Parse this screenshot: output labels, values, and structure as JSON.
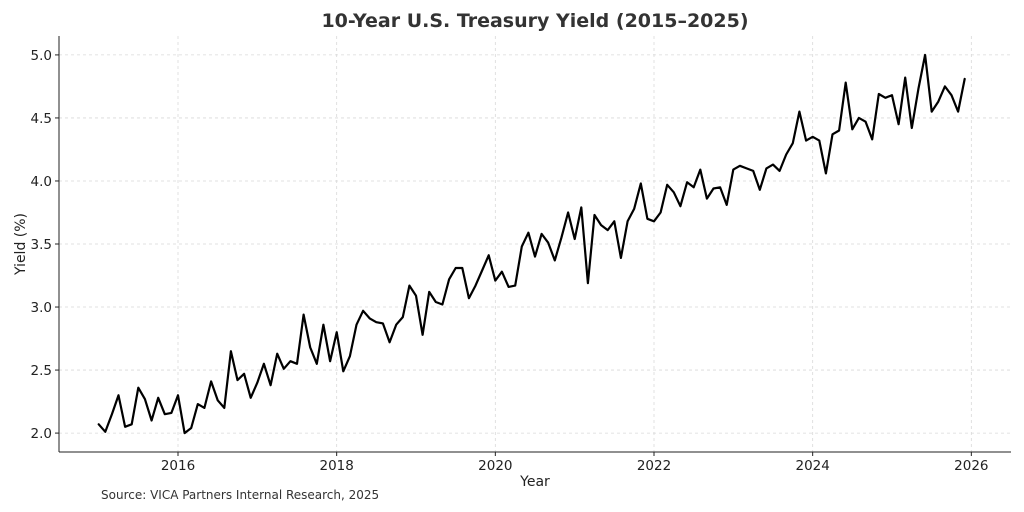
{
  "chart_data": {
    "type": "line",
    "title": "10-Year U.S. Treasury Yield (2015–2025)",
    "xlabel": "Year",
    "ylabel": "Yield (%)",
    "source": "Source: VICA Partners Internal Research, 2025",
    "xlim": [
      "2014-07-01",
      "2026-07-01"
    ],
    "ylim": [
      1.85,
      5.15
    ],
    "x_ticks": [
      "2016",
      "2018",
      "2020",
      "2022",
      "2024",
      "2026"
    ],
    "y_ticks": [
      "2.0",
      "2.5",
      "3.0",
      "3.5",
      "4.0",
      "4.5",
      "5.0"
    ],
    "grid": true,
    "line_color": "#000000",
    "series": [
      {
        "x": [
          "2015-01",
          "2015-02",
          "2015-03",
          "2015-04",
          "2015-05",
          "2015-06",
          "2015-07",
          "2015-08",
          "2015-09",
          "2015-10",
          "2015-11",
          "2015-12",
          "2016-01",
          "2016-02",
          "2016-03",
          "2016-04",
          "2016-05",
          "2016-06",
          "2016-07",
          "2016-08",
          "2016-09",
          "2016-10",
          "2016-11",
          "2016-12",
          "2017-01",
          "2017-02",
          "2017-03",
          "2017-04",
          "2017-05",
          "2017-06",
          "2017-07",
          "2017-08",
          "2017-09",
          "2017-10",
          "2017-11",
          "2017-12",
          "2018-01",
          "2018-02",
          "2018-03",
          "2018-04",
          "2018-05",
          "2018-06",
          "2018-07",
          "2018-08",
          "2018-09",
          "2018-10",
          "2018-11",
          "2018-12",
          "2019-01",
          "2019-02",
          "2019-03",
          "2019-04",
          "2019-05",
          "2019-06",
          "2019-07",
          "2019-08",
          "2019-09",
          "2019-10",
          "2019-11",
          "2019-12",
          "2020-01",
          "2020-02",
          "2020-03",
          "2020-04",
          "2020-05",
          "2020-06",
          "2020-07",
          "2020-08",
          "2020-09",
          "2020-10",
          "2020-11",
          "2020-12",
          "2021-01",
          "2021-02",
          "2021-03",
          "2021-04",
          "2021-05",
          "2021-06",
          "2021-07",
          "2021-08",
          "2021-09",
          "2021-10",
          "2021-11",
          "2021-12",
          "2022-01",
          "2022-02",
          "2022-03",
          "2022-04",
          "2022-05",
          "2022-06",
          "2022-07",
          "2022-08",
          "2022-09",
          "2022-10",
          "2022-11",
          "2022-12",
          "2023-01",
          "2023-02",
          "2023-03",
          "2023-04",
          "2023-05",
          "2023-06",
          "2023-07",
          "2023-08",
          "2023-09",
          "2023-10",
          "2023-11",
          "2023-12",
          "2024-01",
          "2024-02",
          "2024-03",
          "2024-04",
          "2024-05",
          "2024-06",
          "2024-07",
          "2024-08",
          "2024-09",
          "2024-10",
          "2024-11",
          "2024-12",
          "2025-01",
          "2025-02",
          "2025-03",
          "2025-04",
          "2025-05",
          "2025-06",
          "2025-07",
          "2025-08",
          "2025-09",
          "2025-10",
          "2025-11",
          "2025-12"
        ],
        "values": [
          2.07,
          2.01,
          2.15,
          2.3,
          2.05,
          2.07,
          2.36,
          2.27,
          2.1,
          2.28,
          2.15,
          2.16,
          2.3,
          2.0,
          2.04,
          2.23,
          2.2,
          2.41,
          2.26,
          2.2,
          2.65,
          2.42,
          2.47,
          2.28,
          2.4,
          2.55,
          2.38,
          2.63,
          2.51,
          2.57,
          2.55,
          2.94,
          2.68,
          2.55,
          2.86,
          2.57,
          2.8,
          2.49,
          2.61,
          2.86,
          2.97,
          2.91,
          2.88,
          2.87,
          2.72,
          2.86,
          2.92,
          3.17,
          3.09,
          2.78,
          3.12,
          3.04,
          3.02,
          3.22,
          3.31,
          3.31,
          3.07,
          3.17,
          3.29,
          3.41,
          3.21,
          3.28,
          3.16,
          3.17,
          3.48,
          3.59,
          3.4,
          3.58,
          3.51,
          3.37,
          3.55,
          3.75,
          3.54,
          3.79,
          3.19,
          3.73,
          3.65,
          3.61,
          3.68,
          3.39,
          3.68,
          3.78,
          3.98,
          3.7,
          3.68,
          3.75,
          3.97,
          3.91,
          3.8,
          3.99,
          3.95,
          4.09,
          3.86,
          3.94,
          3.95,
          3.81,
          4.09,
          4.12,
          4.1,
          4.08,
          3.93,
          4.1,
          4.13,
          4.08,
          4.21,
          4.3,
          4.55,
          4.32,
          4.35,
          4.32,
          4.06,
          4.37,
          4.4,
          4.78,
          4.41,
          4.5,
          4.47,
          4.33,
          4.69,
          4.66,
          4.68,
          4.45,
          4.82,
          4.42,
          4.73,
          5.0,
          4.55,
          4.63,
          4.75,
          4.68,
          4.55,
          4.81
        ]
      }
    ]
  }
}
